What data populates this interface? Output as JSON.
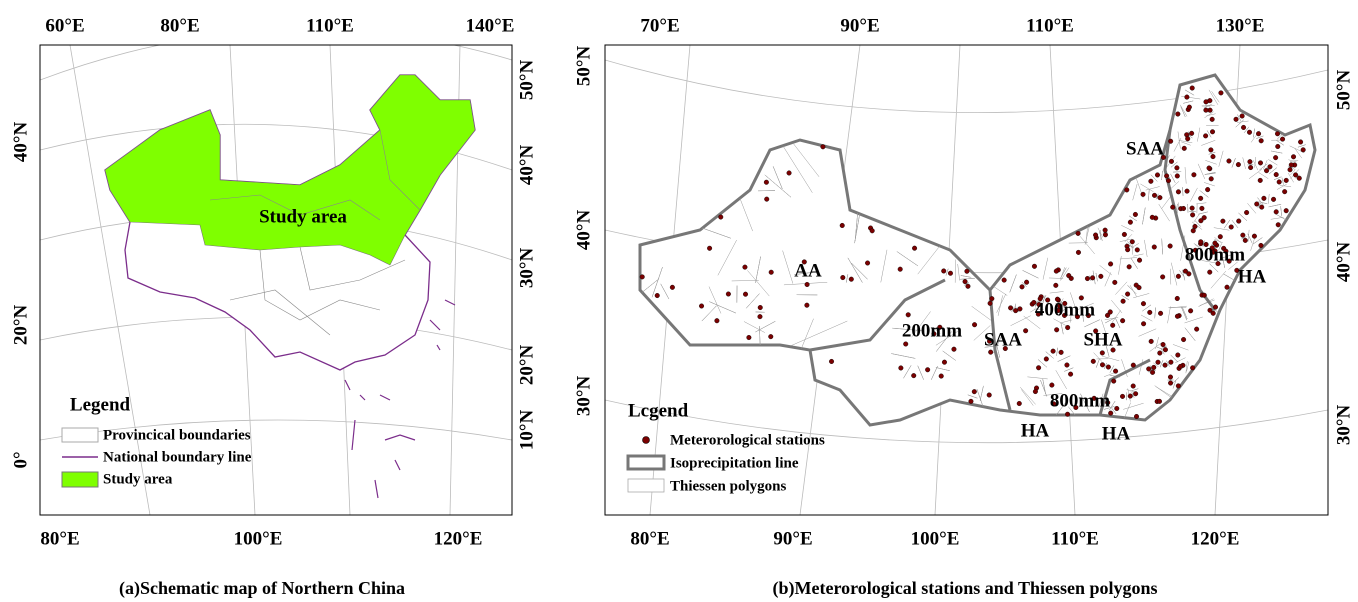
{
  "panels": [
    {
      "caption": "(a)Schematic map of Northern China",
      "top_ticks": [
        "60°E",
        "80°E",
        "110°E",
        "140°E"
      ],
      "right_ticks": [
        "50°N",
        "40°N",
        "30°N",
        "20°N",
        "10°N"
      ],
      "left_ticks": [
        "40°N",
        "20°N",
        "0°"
      ],
      "bottom_ticks": [
        "80°E",
        "100°E",
        "120°E"
      ],
      "labels": [
        "Study area"
      ],
      "legend": {
        "title": "Legend",
        "items": [
          "Provincical boundaries",
          "National boundary line",
          "Study area"
        ]
      }
    },
    {
      "caption": "(b)Meterorological stations and Thiessen polygons",
      "top_ticks": [
        "70°E",
        "90°E",
        "110°E",
        "130°E"
      ],
      "left_ticks": [
        "50°N",
        "40°N",
        "30°N"
      ],
      "right_ticks": [
        "50°N",
        "40°N",
        "30°N"
      ],
      "bottom_ticks": [
        "80°E",
        "90°E",
        "100°E",
        "110°E",
        "120°E"
      ],
      "labels": [
        "SAA",
        "AA",
        "800mm",
        "HA",
        "400mm",
        "200mm",
        "SAA",
        "SHA",
        "800mm",
        "HA",
        "HA"
      ],
      "legend": {
        "title": "Lcgend",
        "items": [
          "Meterorological stations",
          "Isoprecipitation line",
          "Thiessen polygons"
        ]
      }
    }
  ]
}
